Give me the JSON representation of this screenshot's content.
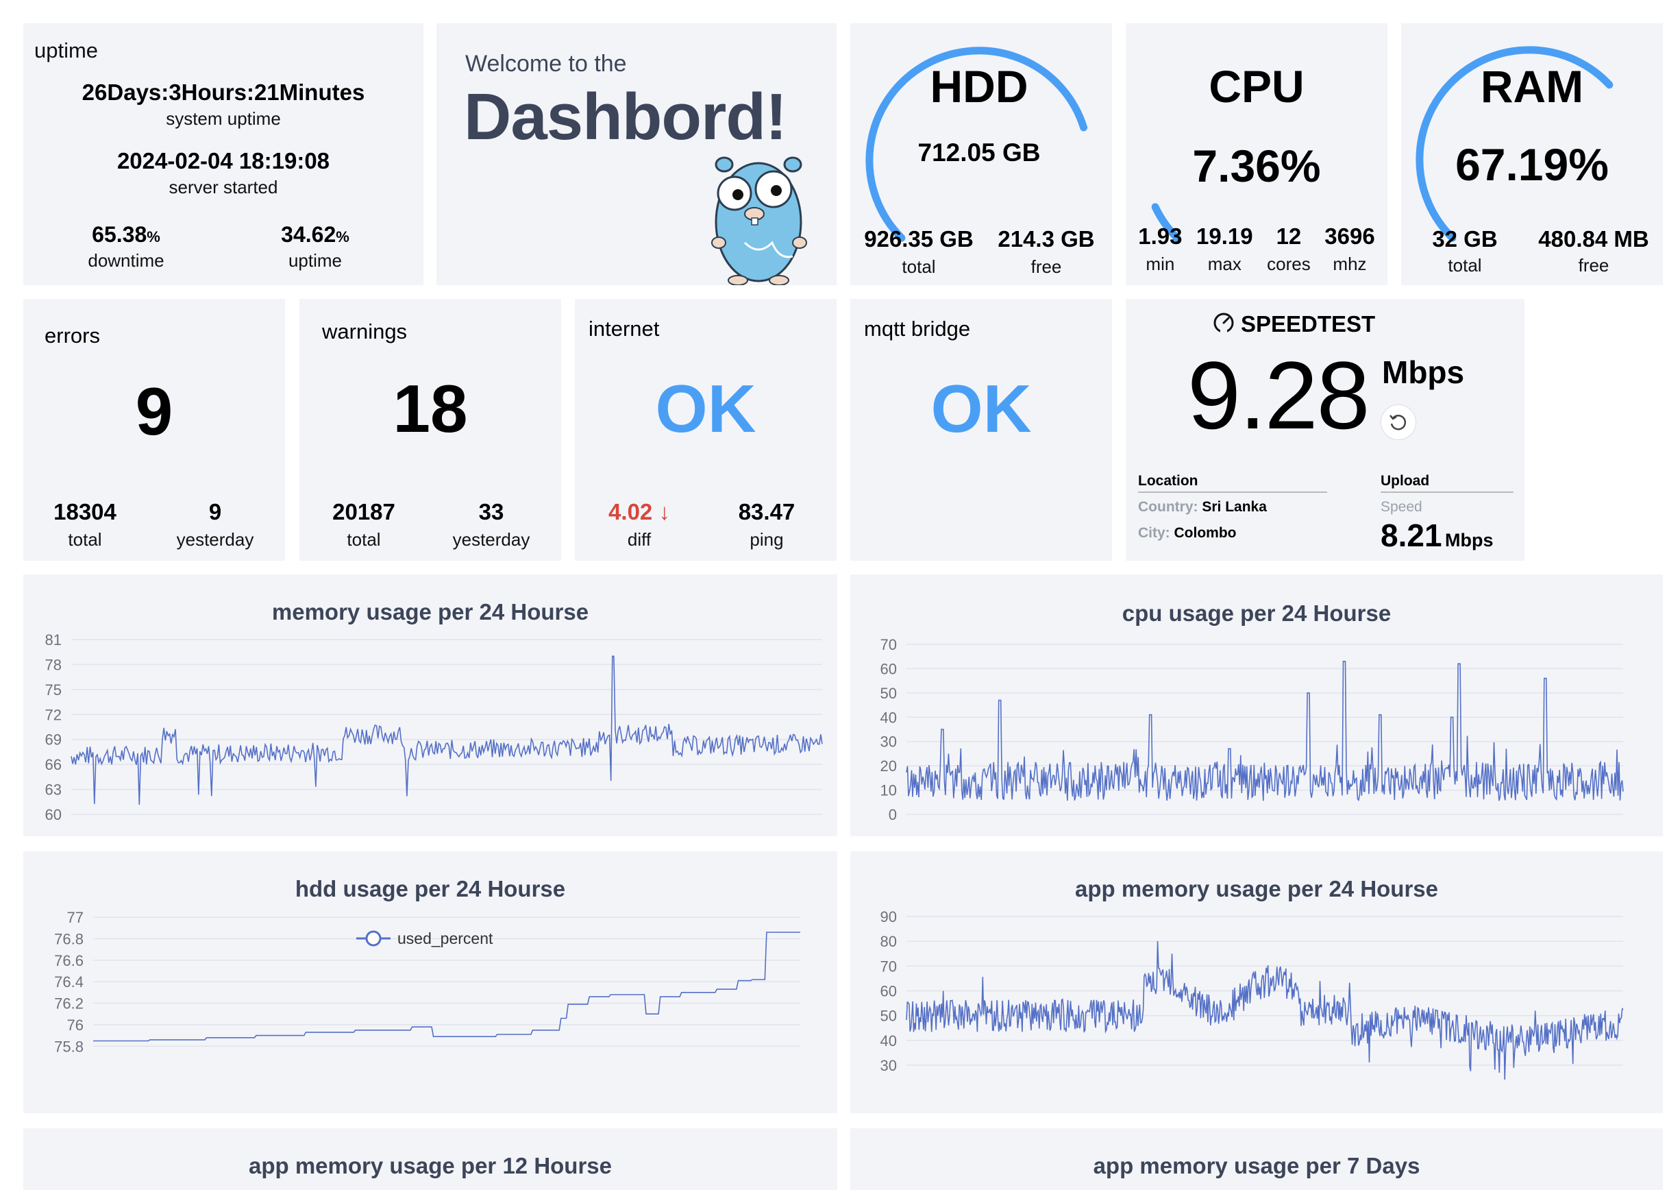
{
  "uptime": {
    "title": "uptime",
    "duration": "26Days:3Hours:21Minutes",
    "duration_label": "system uptime",
    "started": "2024-02-04 18:19:08",
    "started_label": "server started",
    "downtime_value": "65.38",
    "downtime_unit": "%",
    "downtime_label": "downtime",
    "uptime_value": "34.62",
    "uptime_unit": "%",
    "uptime_label": "uptime"
  },
  "welcome": {
    "line1": "Welcome to the",
    "line2": "Dashbord!"
  },
  "hdd": {
    "title": "HDD",
    "used": "712.05 GB",
    "total_value": "926.35 GB",
    "total_label": "total",
    "free_value": "214.3 GB",
    "free_label": "free",
    "gauge_fraction": 0.7687
  },
  "cpu": {
    "title": "CPU",
    "percent": "7.36%",
    "stats": [
      {
        "value": "1.93",
        "label": "min"
      },
      {
        "value": "19.19",
        "label": "max"
      },
      {
        "value": "12",
        "label": "cores"
      },
      {
        "value": "3696",
        "label": "mhz"
      }
    ],
    "gauge_fraction": 0.0736
  },
  "ram": {
    "title": "RAM",
    "percent": "67.19%",
    "total_value": "32 GB",
    "total_label": "total",
    "free_value": "480.84 MB",
    "free_label": "free",
    "gauge_fraction": 0.6719
  },
  "errors": {
    "title": "errors",
    "count": "9",
    "total_value": "18304",
    "total_label": "total",
    "yesterday_value": "9",
    "yesterday_label": "yesterday"
  },
  "warnings": {
    "title": "warnings",
    "count": "18",
    "total_value": "20187",
    "total_label": "total",
    "yesterday_value": "33",
    "yesterday_label": "yesterday"
  },
  "internet": {
    "title": "internet",
    "status": "OK",
    "diff_value": "4.02",
    "diff_arrow": "↓",
    "diff_label": "diff",
    "ping_value": "83.47",
    "ping_label": "ping"
  },
  "mqtt": {
    "title": "mqtt bridge",
    "status": "OK"
  },
  "speedtest": {
    "title": "SPEEDTEST",
    "value": "9.28",
    "unit": "Mbps",
    "location_header": "Location",
    "country_label": "Country:",
    "country_value": "Sri Lanka",
    "city_label": "City:",
    "city_value": "Colombo",
    "upload_header": "Upload",
    "speed_label": "Speed",
    "upload_value": "8.21",
    "upload_unit": "Mbps"
  },
  "colors": {
    "accent": "#4a9ff5",
    "line": "#5470c6",
    "title": "#3c4559",
    "diff": "#d9463b"
  },
  "chart_data": [
    {
      "type": "line",
      "title": "memory usage per 24 Hourse",
      "ylim": [
        60,
        81
      ],
      "yticks": [
        "81",
        "78",
        "75",
        "72",
        "69",
        "66",
        "63",
        "60"
      ],
      "pattern": {
        "base": 67,
        "trend": 1.5,
        "noise": 1.2,
        "spike_at": 0.72,
        "spike_value": 79
      }
    },
    {
      "type": "line",
      "title": "cpu usage per 24 Hourse",
      "ylim": [
        0,
        70
      ],
      "yticks": [
        "70",
        "60",
        "50",
        "40",
        "30",
        "20",
        "10",
        "0"
      ],
      "pattern": {
        "base": 12,
        "noise": 8,
        "spikes": [
          [
            0.05,
            35
          ],
          [
            0.13,
            47
          ],
          [
            0.34,
            41
          ],
          [
            0.45,
            27
          ],
          [
            0.56,
            50
          ],
          [
            0.61,
            63
          ],
          [
            0.66,
            41
          ],
          [
            0.76,
            40
          ],
          [
            0.66,
            41
          ],
          [
            0.77,
            62
          ],
          [
            0.89,
            56
          ]
        ]
      }
    },
    {
      "type": "line",
      "title": "hdd usage per 24 Hourse",
      "ylim": [
        75.7,
        77
      ],
      "yticks": [
        "77",
        "76.8",
        "76.6",
        "76.4",
        "76.2",
        "76",
        "75.8"
      ],
      "legend": "used_percent",
      "steps": [
        [
          0,
          75.85
        ],
        [
          0.08,
          75.86
        ],
        [
          0.16,
          75.88
        ],
        [
          0.23,
          75.9
        ],
        [
          0.3,
          75.93
        ],
        [
          0.37,
          75.95
        ],
        [
          0.45,
          75.98
        ],
        [
          0.48,
          75.89
        ],
        [
          0.57,
          75.91
        ],
        [
          0.62,
          75.95
        ],
        [
          0.66,
          76.06
        ],
        [
          0.67,
          76.19
        ],
        [
          0.7,
          76.26
        ],
        [
          0.73,
          76.28
        ],
        [
          0.78,
          76.1
        ],
        [
          0.8,
          76.26
        ],
        [
          0.83,
          76.3
        ],
        [
          0.88,
          76.33
        ],
        [
          0.91,
          76.41
        ],
        [
          0.93,
          76.42
        ],
        [
          0.95,
          76.86
        ],
        [
          1.0,
          76.86
        ]
      ]
    },
    {
      "type": "line",
      "title": "app memory usage per 24 Hourse",
      "ylim": [
        25,
        90
      ],
      "yticks": [
        "90",
        "80",
        "70",
        "60",
        "50",
        "40",
        "30"
      ],
      "pattern": {
        "base": 50,
        "noise": 6
      }
    },
    {
      "type": "line",
      "title": "app memory usage per 12 Hourse"
    },
    {
      "type": "line",
      "title": "app memory usage per 7 Days"
    }
  ]
}
